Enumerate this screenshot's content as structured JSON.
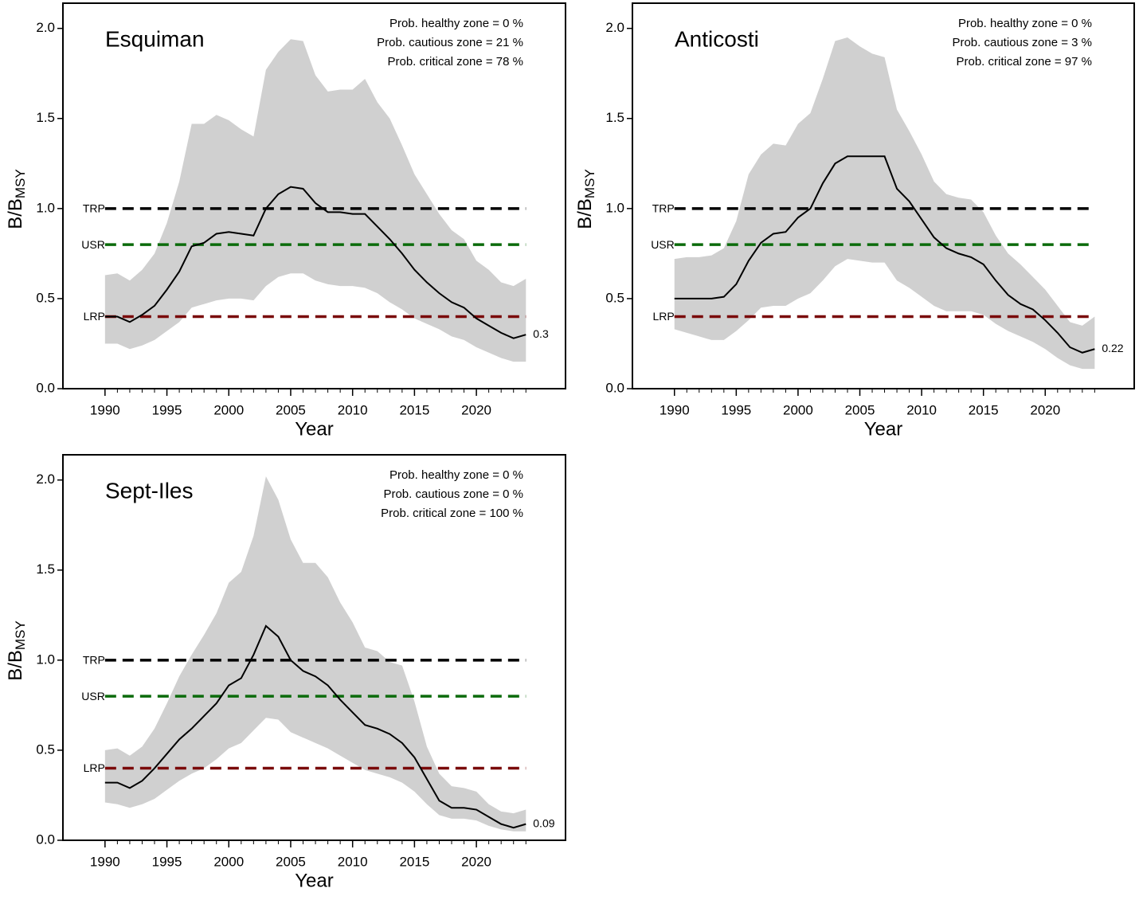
{
  "chart_data": [
    {
      "type": "band-line",
      "title": "Esquiman",
      "xlabel": "Year",
      "ylabel": "B/B",
      "ylabel_sub": "MSY",
      "annotations": [
        "Prob. healthy zone =  0 %",
        "Prob. cautious zone =  21 %",
        "Prob. critical zone =  78 %"
      ],
      "x": [
        1990,
        1991,
        1992,
        1993,
        1994,
        1995,
        1996,
        1997,
        1998,
        1999,
        2000,
        2001,
        2002,
        2003,
        2004,
        2005,
        2006,
        2007,
        2008,
        2009,
        2010,
        2011,
        2012,
        2013,
        2014,
        2015,
        2016,
        2017,
        2018,
        2019,
        2020,
        2021,
        2022,
        2023,
        2024
      ],
      "median": [
        0.4,
        0.4,
        0.37,
        0.41,
        0.46,
        0.55,
        0.65,
        0.79,
        0.81,
        0.86,
        0.87,
        0.86,
        0.85,
        1.0,
        1.08,
        1.12,
        1.11,
        1.03,
        0.98,
        0.98,
        0.97,
        0.97,
        0.9,
        0.83,
        0.75,
        0.66,
        0.59,
        0.53,
        0.48,
        0.45,
        0.39,
        0.35,
        0.31,
        0.28,
        0.3
      ],
      "upper": [
        0.63,
        0.64,
        0.6,
        0.66,
        0.75,
        0.92,
        1.15,
        1.47,
        1.47,
        1.52,
        1.49,
        1.44,
        1.4,
        1.77,
        1.87,
        1.94,
        1.93,
        1.74,
        1.65,
        1.66,
        1.66,
        1.72,
        1.59,
        1.5,
        1.35,
        1.19,
        1.08,
        0.97,
        0.88,
        0.83,
        0.71,
        0.66,
        0.59,
        0.57,
        0.61
      ],
      "lower": [
        0.25,
        0.25,
        0.22,
        0.24,
        0.27,
        0.32,
        0.37,
        0.45,
        0.47,
        0.49,
        0.5,
        0.5,
        0.49,
        0.57,
        0.62,
        0.64,
        0.64,
        0.6,
        0.58,
        0.57,
        0.57,
        0.56,
        0.53,
        0.48,
        0.44,
        0.39,
        0.36,
        0.33,
        0.29,
        0.27,
        0.23,
        0.2,
        0.17,
        0.15,
        0.15
      ],
      "end_label": "0.3",
      "line_color": "#000000",
      "band_color": "#d0d0d0",
      "reference_lines": [
        {
          "name": "TRP",
          "value": 1.0,
          "color": "#000000"
        },
        {
          "name": "USR",
          "value": 0.8,
          "color": "#0b6b0b"
        },
        {
          "name": "LRP",
          "value": 0.4,
          "color": "#7a0a0a"
        }
      ],
      "xlim": [
        1986.6,
        2027.2
      ],
      "xticks": [
        1990,
        1995,
        2000,
        2005,
        2010,
        2015,
        2020
      ],
      "ylim": [
        0,
        2.14
      ],
      "yticks": [
        {
          "value": 0,
          "label": "0.0"
        },
        0.5,
        {
          "value": 1,
          "label": "1.0"
        },
        1.5,
        {
          "value": 2,
          "label": "2.0"
        }
      ]
    },
    {
      "type": "band-line",
      "title": "Anticosti",
      "xlabel": "Year",
      "ylabel": "B/B",
      "ylabel_sub": "MSY",
      "annotations": [
        "Prob. healthy zone =  0 %",
        "Prob. cautious zone =  3 %",
        "Prob. critical zone =  97 %"
      ],
      "x": [
        1990,
        1991,
        1992,
        1993,
        1994,
        1995,
        1996,
        1997,
        1998,
        1999,
        2000,
        2001,
        2002,
        2003,
        2004,
        2005,
        2006,
        2007,
        2008,
        2009,
        2010,
        2011,
        2012,
        2013,
        2014,
        2015,
        2016,
        2017,
        2018,
        2019,
        2020,
        2021,
        2022,
        2023,
        2024
      ],
      "median": [
        0.5,
        0.5,
        0.5,
        0.5,
        0.51,
        0.58,
        0.71,
        0.81,
        0.86,
        0.87,
        0.95,
        1.0,
        1.14,
        1.25,
        1.29,
        1.29,
        1.29,
        1.29,
        1.11,
        1.04,
        0.94,
        0.84,
        0.78,
        0.75,
        0.73,
        0.69,
        0.6,
        0.52,
        0.47,
        0.44,
        0.38,
        0.31,
        0.23,
        0.2,
        0.22
      ],
      "upper": [
        0.72,
        0.73,
        0.73,
        0.74,
        0.78,
        0.93,
        1.19,
        1.3,
        1.36,
        1.35,
        1.47,
        1.53,
        1.72,
        1.93,
        1.95,
        1.9,
        1.86,
        1.84,
        1.55,
        1.43,
        1.3,
        1.15,
        1.08,
        1.06,
        1.05,
        0.98,
        0.85,
        0.75,
        0.69,
        0.62,
        0.55,
        0.46,
        0.37,
        0.35,
        0.4
      ],
      "lower": [
        0.33,
        0.31,
        0.29,
        0.27,
        0.27,
        0.32,
        0.38,
        0.45,
        0.46,
        0.46,
        0.5,
        0.53,
        0.6,
        0.68,
        0.72,
        0.71,
        0.7,
        0.7,
        0.6,
        0.56,
        0.51,
        0.46,
        0.43,
        0.43,
        0.43,
        0.41,
        0.36,
        0.32,
        0.29,
        0.26,
        0.22,
        0.17,
        0.13,
        0.11,
        0.11
      ],
      "end_label": "0.22",
      "line_color": "#000000",
      "band_color": "#d0d0d0",
      "reference_lines": [
        {
          "name": "TRP",
          "value": 1.0,
          "color": "#000000"
        },
        {
          "name": "USR",
          "value": 0.8,
          "color": "#0b6b0b"
        },
        {
          "name": "LRP",
          "value": 0.4,
          "color": "#7a0a0a"
        }
      ],
      "xlim": [
        1986.6,
        2027.2
      ],
      "xticks": [
        1990,
        1995,
        2000,
        2005,
        2010,
        2015,
        2020
      ],
      "ylim": [
        0,
        2.14
      ],
      "yticks": [
        {
          "value": 0,
          "label": "0.0"
        },
        0.5,
        {
          "value": 1,
          "label": "1.0"
        },
        1.5,
        {
          "value": 2,
          "label": "2.0"
        }
      ]
    },
    {
      "type": "band-line",
      "title": "Sept-Iles",
      "xlabel": "Year",
      "ylabel": "B/B",
      "ylabel_sub": "MSY",
      "annotations": [
        "Prob. healthy zone =  0 %",
        "Prob. cautious zone =  0 %",
        "Prob. critical zone =  100 %"
      ],
      "x": [
        1990,
        1991,
        1992,
        1993,
        1994,
        1995,
        1996,
        1997,
        1998,
        1999,
        2000,
        2001,
        2002,
        2003,
        2004,
        2005,
        2006,
        2007,
        2008,
        2009,
        2010,
        2011,
        2012,
        2013,
        2014,
        2015,
        2016,
        2017,
        2018,
        2019,
        2020,
        2021,
        2022,
        2023,
        2024
      ],
      "median": [
        0.32,
        0.32,
        0.29,
        0.33,
        0.4,
        0.48,
        0.56,
        0.62,
        0.69,
        0.76,
        0.86,
        0.9,
        1.03,
        1.19,
        1.13,
        1.0,
        0.94,
        0.91,
        0.86,
        0.78,
        0.71,
        0.64,
        0.62,
        0.59,
        0.54,
        0.46,
        0.34,
        0.22,
        0.18,
        0.18,
        0.17,
        0.13,
        0.09,
        0.07,
        0.09
      ],
      "upper": [
        0.5,
        0.51,
        0.47,
        0.52,
        0.62,
        0.76,
        0.91,
        1.03,
        1.14,
        1.26,
        1.43,
        1.49,
        1.69,
        2.02,
        1.89,
        1.67,
        1.54,
        1.54,
        1.46,
        1.32,
        1.21,
        1.07,
        1.05,
        0.99,
        0.97,
        0.77,
        0.52,
        0.37,
        0.3,
        0.29,
        0.27,
        0.2,
        0.16,
        0.15,
        0.17
      ],
      "lower": [
        0.21,
        0.2,
        0.18,
        0.2,
        0.23,
        0.28,
        0.33,
        0.37,
        0.4,
        0.45,
        0.51,
        0.54,
        0.61,
        0.68,
        0.67,
        0.6,
        0.57,
        0.54,
        0.51,
        0.47,
        0.43,
        0.39,
        0.37,
        0.35,
        0.32,
        0.27,
        0.2,
        0.14,
        0.12,
        0.12,
        0.11,
        0.08,
        0.06,
        0.05,
        0.05
      ],
      "end_label": "0.09",
      "line_color": "#000000",
      "band_color": "#d0d0d0",
      "reference_lines": [
        {
          "name": "TRP",
          "value": 1.0,
          "color": "#000000"
        },
        {
          "name": "USR",
          "value": 0.8,
          "color": "#0b6b0b"
        },
        {
          "name": "LRP",
          "value": 0.4,
          "color": "#7a0a0a"
        }
      ],
      "xlim": [
        1986.6,
        2027.2
      ],
      "xticks": [
        1990,
        1995,
        2000,
        2005,
        2010,
        2015,
        2020
      ],
      "ylim": [
        0,
        2.14
      ],
      "yticks": [
        {
          "value": 0,
          "label": "0.0"
        },
        0.5,
        {
          "value": 1,
          "label": "1.0"
        },
        1.5,
        {
          "value": 2,
          "label": "2.0"
        }
      ]
    }
  ]
}
